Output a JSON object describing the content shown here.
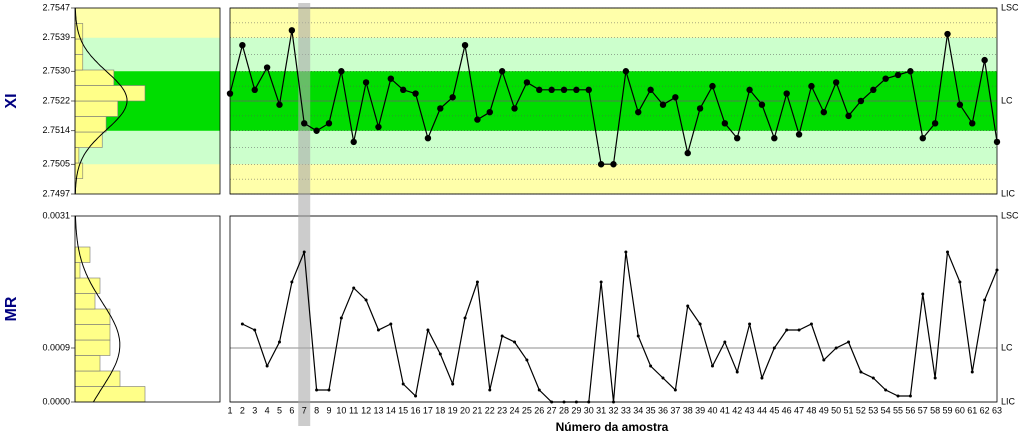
{
  "chart_data": [
    {
      "type": "line",
      "y_label": "XI",
      "color": "#000000",
      "background": "#ffffaa",
      "grid": true,
      "markers": true,
      "ylim": [
        2.7497,
        2.7547
      ],
      "yticks": [
        2.7497,
        2.7505,
        2.7514,
        2.7522,
        {
          "value": 2.753,
          "label": "2.7530"
        },
        2.7539,
        2.7547
      ],
      "zones": [
        {
          "from": 2.7505,
          "to": 2.7539,
          "color": "#ccffcc"
        },
        {
          "from": 2.7514,
          "to": 2.753,
          "color": "#00dd00"
        }
      ],
      "control_lines": [
        {
          "label": "LSC",
          "value": 2.7547
        },
        {
          "label": "LC",
          "value": 2.7522
        },
        {
          "label": "LIC",
          "value": 2.7497
        }
      ],
      "values": [
        2.7524,
        2.7537,
        2.7525,
        2.7531,
        2.7521,
        2.7541,
        2.7516,
        2.7514,
        2.7516,
        2.753,
        2.7511,
        2.7527,
        2.7515,
        2.7528,
        2.7525,
        2.7524,
        2.7512,
        2.752,
        2.7523,
        2.7537,
        2.7517,
        2.7519,
        2.753,
        2.752,
        2.7527,
        2.7525,
        2.7525,
        2.7525,
        2.7525,
        2.7525,
        2.7505,
        2.7505,
        2.753,
        2.7519,
        2.7525,
        2.7521,
        2.7523,
        2.7508,
        2.752,
        2.7526,
        2.7516,
        2.7512,
        2.7525,
        2.7521,
        2.7512,
        2.7524,
        2.7513,
        2.7526,
        2.7519,
        2.7527,
        2.7518,
        2.7522,
        2.7525,
        2.7528,
        2.7529,
        2.753,
        2.7512,
        2.7516,
        2.754,
        2.7521,
        2.7516,
        2.7533,
        2.7511
      ]
    },
    {
      "type": "line",
      "y_label": "MR",
      "x_label": "Número da amostra",
      "color": "#000000",
      "background": "#ffffff",
      "grid": false,
      "markers": false,
      "selected_category": 7,
      "ylim": [
        0,
        0.0031
      ],
      "yticks": [
        {
          "value": 0,
          "label": "0.0000"
        },
        0.0009,
        0.0031
      ],
      "control_lines": [
        {
          "label": "LSC",
          "value": 0.0031
        },
        {
          "label": "LC",
          "value": 0.0009
        },
        {
          "label": "LIC",
          "value": 0
        }
      ],
      "categories": [
        1,
        2,
        3,
        4,
        5,
        6,
        7,
        8,
        9,
        10,
        11,
        12,
        13,
        14,
        15,
        16,
        17,
        18,
        19,
        20,
        21,
        22,
        23,
        24,
        25,
        26,
        27,
        28,
        29,
        30,
        31,
        32,
        33,
        34,
        35,
        36,
        37,
        38,
        39,
        40,
        41,
        42,
        43,
        44,
        45,
        46,
        47,
        48,
        49,
        50,
        51,
        52,
        53,
        54,
        55,
        56,
        57,
        58,
        59,
        60,
        61,
        62,
        63
      ],
      "values": [
        null,
        0.0013,
        0.0012,
        0.0006,
        0.001,
        0.002,
        0.0025,
        0.0002,
        0.0002,
        0.0014,
        0.0019,
        0.0017,
        0.0012,
        0.0013,
        0.0003,
        0.0001,
        0.0012,
        0.0008,
        0.0003,
        0.0014,
        0.002,
        0.0002,
        0.0011,
        0.001,
        0.0007,
        0.0002,
        0,
        0,
        0,
        0,
        0.002,
        0,
        0.0025,
        0.0011,
        0.0006,
        0.0004,
        0.0002,
        0.0016,
        0.0013,
        0.0006,
        0.001,
        0.0005,
        0.0013,
        0.0004,
        0.0009,
        0.0012,
        0.0012,
        0.0013,
        0.0007,
        0.0009,
        0.001,
        0.0005,
        0.0004,
        0.0002,
        0.0001,
        0.0001,
        0.0018,
        0.0004,
        0.0025,
        0.002,
        0.0005,
        0.0017,
        0.0022
      ]
    }
  ]
}
